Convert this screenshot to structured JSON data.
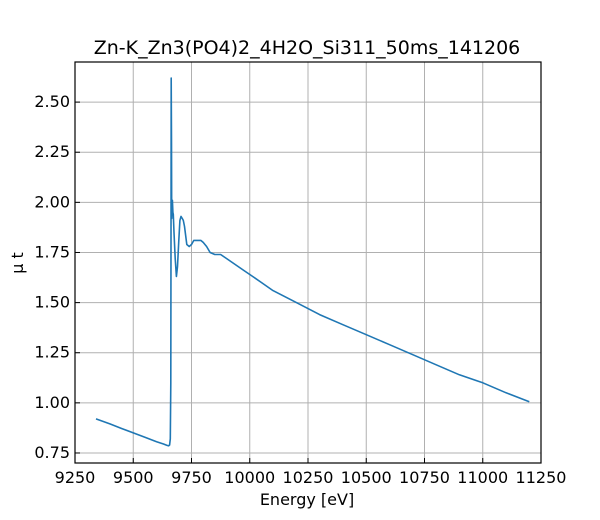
{
  "chart_data": {
    "type": "line",
    "title": "Zn-K_Zn3(PO4)2_4H2O_Si311_50ms_141206",
    "xlabel": "Energy [eV]",
    "ylabel": "μ t",
    "xlim": [
      9250,
      11250
    ],
    "ylim": [
      0.7,
      2.7
    ],
    "grid": true,
    "xticks": [
      9250,
      9500,
      9750,
      10000,
      10250,
      10500,
      10750,
      11000,
      11250
    ],
    "yticks": [
      0.75,
      1.0,
      1.25,
      1.5,
      1.75,
      2.0,
      2.25,
      2.5
    ],
    "xtick_labels": [
      "9250",
      "9500",
      "9750",
      "10000",
      "10250",
      "10500",
      "10750",
      "11000",
      "11250"
    ],
    "ytick_labels": [
      "0.75",
      "1.00",
      "1.25",
      "1.50",
      "1.75",
      "2.00",
      "2.25",
      "2.50"
    ],
    "series": [
      {
        "color": "#1f77b4",
        "x": [
          9340,
          9400,
          9450,
          9500,
          9550,
          9600,
          9630,
          9645,
          9652,
          9656,
          9659,
          9661,
          9662,
          9663,
          9664,
          9665,
          9666,
          9667,
          9668,
          9670,
          9672,
          9675,
          9680,
          9685,
          9690,
          9695,
          9700,
          9705,
          9710,
          9715,
          9720,
          9730,
          9740,
          9750,
          9760,
          9775,
          9790,
          9800,
          9815,
          9830,
          9850,
          9875,
          9900,
          9925,
          9950,
          9975,
          10000,
          10050,
          10100,
          10150,
          10200,
          10300,
          10400,
          10500,
          10600,
          10700,
          10800,
          10900,
          11000,
          11100,
          11200
        ],
        "y": [
          0.92,
          0.895,
          0.872,
          0.85,
          0.828,
          0.806,
          0.795,
          0.788,
          0.786,
          0.79,
          0.82,
          1.1,
          1.8,
          2.62,
          2.3,
          1.92,
          2.0,
          1.97,
          2.01,
          1.95,
          1.94,
          1.85,
          1.72,
          1.63,
          1.68,
          1.8,
          1.91,
          1.93,
          1.92,
          1.91,
          1.88,
          1.79,
          1.78,
          1.79,
          1.81,
          1.81,
          1.81,
          1.8,
          1.78,
          1.75,
          1.74,
          1.74,
          1.72,
          1.7,
          1.68,
          1.66,
          1.64,
          1.6,
          1.56,
          1.53,
          1.5,
          1.44,
          1.39,
          1.34,
          1.29,
          1.24,
          1.19,
          1.14,
          1.1,
          1.05,
          1.005
        ]
      }
    ]
  }
}
